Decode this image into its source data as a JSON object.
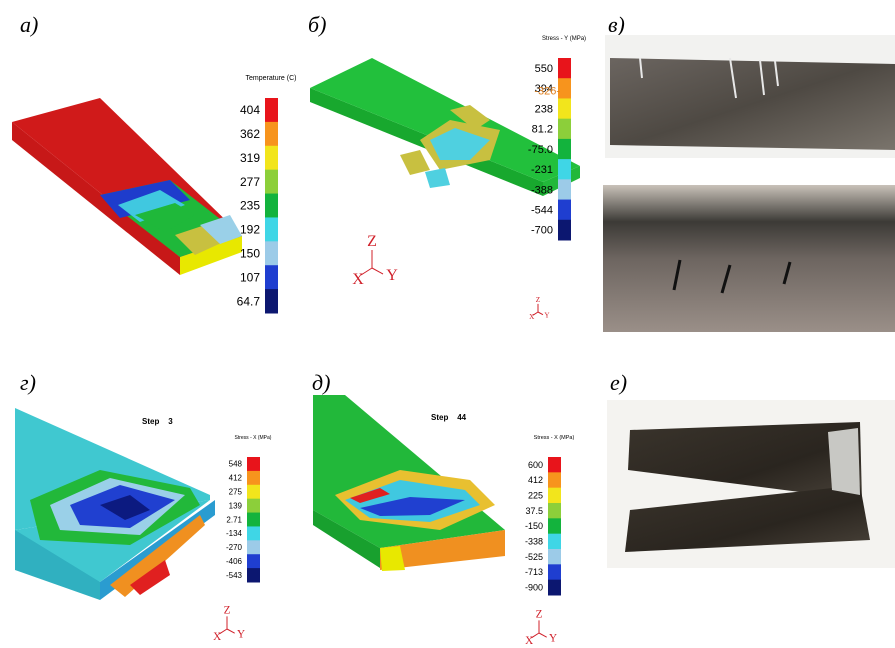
{
  "panels": [
    {
      "label": "а)",
      "legend": {
        "title": "Temperature (C)",
        "ticks": [
          "404",
          "362",
          "319",
          "277",
          "235",
          "192",
          "150",
          "107",
          "64.7"
        ]
      }
    },
    {
      "label": "б)",
      "legend": {
        "title": "Stress - Y (MPa)",
        "ticks": [
          "550",
          "394",
          "238",
          "81.2",
          "-75.0",
          "-231",
          "-388",
          "-544",
          "-700"
        ],
        "marker": "-326-"
      },
      "triad": {
        "z": "Z",
        "x": "X",
        "y": "Y"
      },
      "small_triad": {
        "z": "Z",
        "x": "X",
        "y": "Y"
      }
    },
    {
      "label": "в)"
    },
    {
      "label": "г)",
      "step": "Step    3",
      "legend": {
        "title": "Stress - X (MPa)",
        "ticks": [
          "548",
          "412",
          "275",
          "139",
          "2.71",
          "-134",
          "-270",
          "-406",
          "-543"
        ]
      },
      "triad": {
        "z": "Z",
        "x": "X",
        "y": "Y"
      }
    },
    {
      "label": "д)",
      "step": "Step    44",
      "legend": {
        "title": "Stress - X (MPa)",
        "ticks": [
          "600",
          "412",
          "225",
          "37.5",
          "-150",
          "-338",
          "-525",
          "-713",
          "-900"
        ]
      },
      "triad": {
        "z": "Z",
        "x": "X",
        "y": "Y"
      }
    },
    {
      "label": "е)"
    }
  ]
}
